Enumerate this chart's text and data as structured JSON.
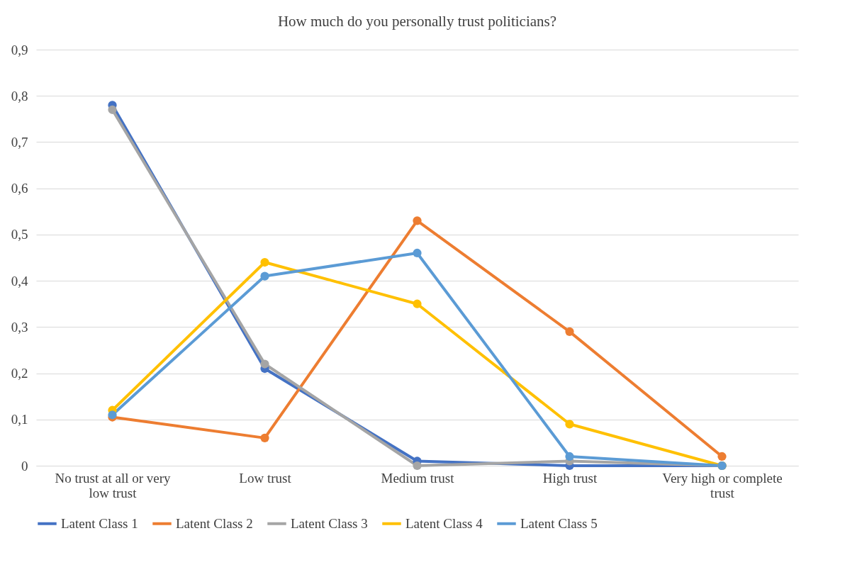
{
  "chart_data": {
    "type": "line",
    "title": "How much do you personally trust politicians?",
    "categories": [
      "No trust at all or very low trust",
      "Low trust",
      "Medium trust",
      "High trust",
      "Very high or complete trust"
    ],
    "series": [
      {
        "name": "Latent Class 1",
        "color": "#4472c4",
        "values": [
          0.78,
          0.21,
          0.01,
          0.0,
          0.0
        ]
      },
      {
        "name": "Latent Class 2",
        "color": "#ed7d31",
        "values": [
          0.105,
          0.06,
          0.53,
          0.29,
          0.02
        ]
      },
      {
        "name": "Latent Class 3",
        "color": "#a5a5a5",
        "values": [
          0.77,
          0.22,
          0.0,
          0.01,
          0.0
        ]
      },
      {
        "name": "Latent Class 4",
        "color": "#ffc000",
        "values": [
          0.12,
          0.44,
          0.35,
          0.09,
          0.0
        ]
      },
      {
        "name": "Latent Class 5",
        "color": "#5b9bd5",
        "values": [
          0.11,
          0.41,
          0.46,
          0.02,
          0.0
        ]
      }
    ],
    "ylim": [
      0,
      0.9
    ],
    "yticks": [
      0,
      {
        "value": 0.1,
        "label": "0,1"
      },
      {
        "value": 0.2,
        "label": "0,2"
      },
      {
        "value": 0.3,
        "label": "0,3"
      },
      {
        "value": 0.4,
        "label": "0,4"
      },
      {
        "value": 0.5,
        "label": "0,5"
      },
      {
        "value": 0.6,
        "label": "0,6"
      },
      {
        "value": 0.7,
        "label": "0,7"
      },
      {
        "value": 0.8,
        "label": "0,8"
      },
      {
        "value": 0.9,
        "label": "0,9"
      }
    ],
    "grid": "y",
    "legend": "bottom",
    "marker": "circle",
    "line_style": "solid"
  }
}
